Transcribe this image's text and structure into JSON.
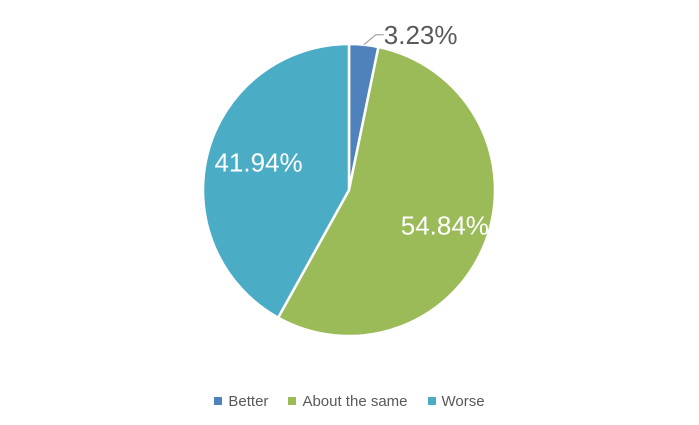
{
  "chart_data": {
    "type": "pie",
    "categories": [
      "Better",
      "About the same",
      "Worse"
    ],
    "values": [
      3.23,
      54.84,
      41.94
    ],
    "data_labels": [
      "3.23%",
      "54.84%",
      "41.94%"
    ],
    "colors": [
      "#4f81bd",
      "#9bbb59",
      "#4bacc6"
    ],
    "label_colors": [
      "#595959",
      "#ffffff",
      "#ffffff"
    ],
    "legend_position": "bottom",
    "start_angle": "top, clockwise"
  }
}
